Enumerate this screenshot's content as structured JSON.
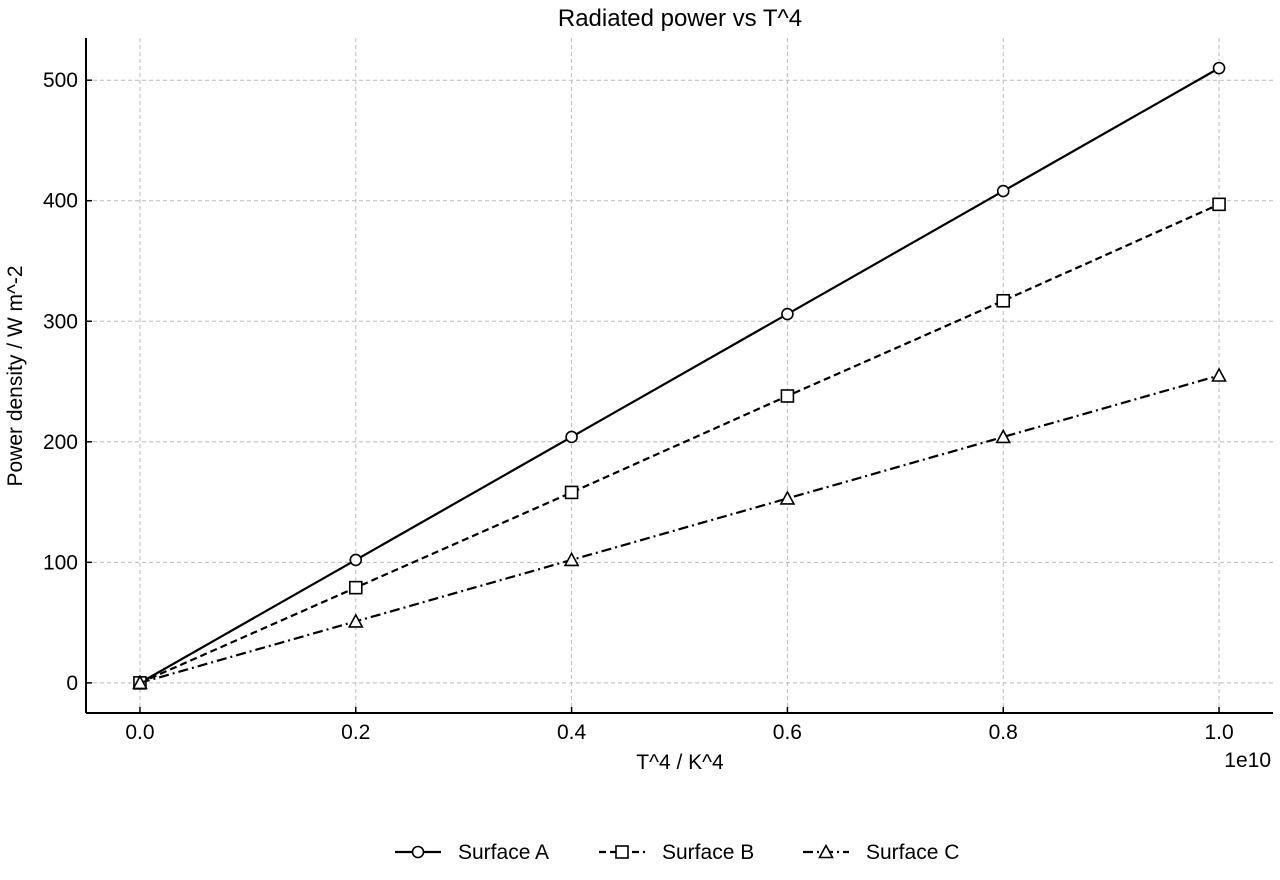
{
  "chart_data": {
    "type": "line",
    "title": "Radiated power vs T^4",
    "xlabel": "T^4 / K^4",
    "ylabel": "Power density / W m^-2",
    "x_scale_label": "1e10",
    "x": [
      0,
      2000000000,
      4000000000,
      6000000000,
      8000000000,
      10000000000
    ],
    "x_tick_values": [
      0,
      2000000000,
      4000000000,
      6000000000,
      8000000000,
      10000000000
    ],
    "x_tick_labels": [
      "0.0",
      "0.2",
      "0.4",
      "0.6",
      "0.8",
      "1.0"
    ],
    "xlim": [
      -500000000,
      10500000000
    ],
    "y_ticks": [
      0,
      100,
      200,
      300,
      400,
      500
    ],
    "y_tick_labels": [
      "0",
      "100",
      "200",
      "300",
      "400",
      "500"
    ],
    "ylim": [
      -25,
      535
    ],
    "grid": true,
    "legend_position": "bottom-center",
    "series": [
      {
        "name": "Surface A",
        "marker": "circle",
        "dash": "solid",
        "values": [
          0,
          102,
          204,
          306,
          408,
          510
        ]
      },
      {
        "name": "Surface B",
        "marker": "square",
        "dash": "dashed",
        "values": [
          0,
          79,
          158,
          238,
          317,
          397
        ]
      },
      {
        "name": "Surface C",
        "marker": "triangle",
        "dash": "dashdot",
        "values": [
          0,
          51,
          102,
          153,
          204,
          255
        ]
      }
    ],
    "colors": {
      "line": "#000000",
      "grid": "#bbbbbb",
      "marker_fill": "#ffffff"
    }
  }
}
